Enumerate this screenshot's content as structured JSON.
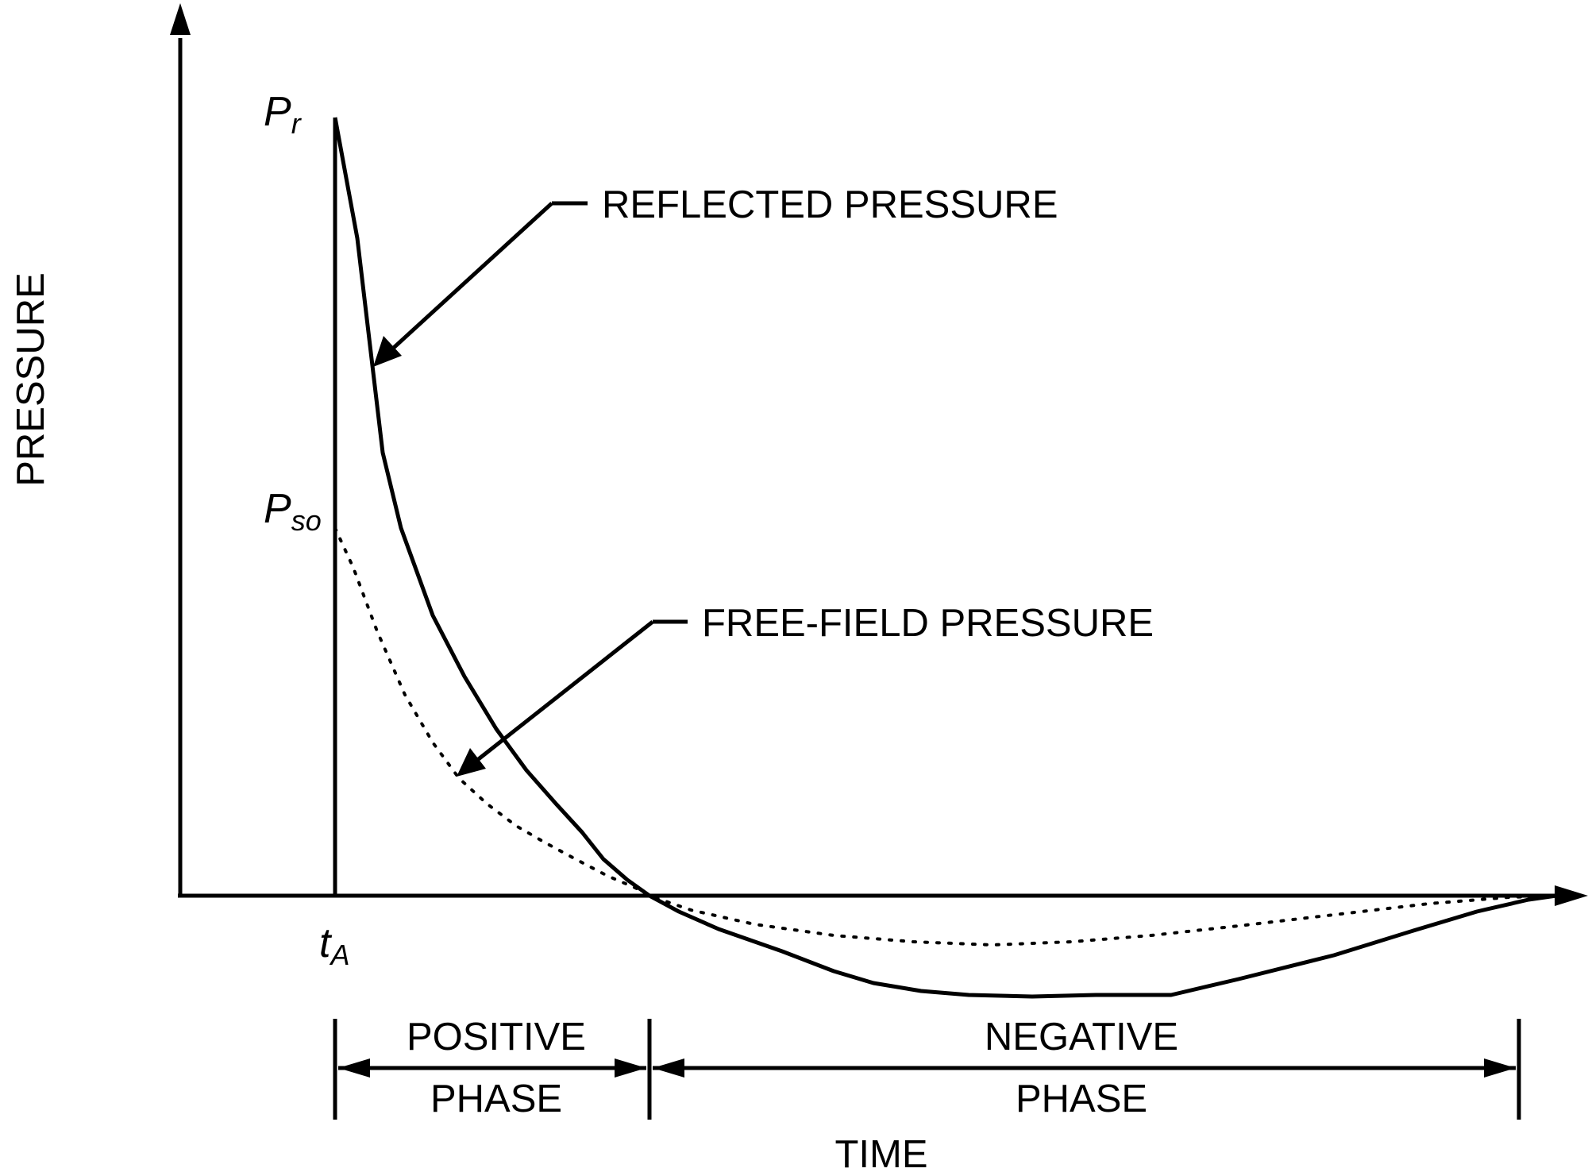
{
  "axes": {
    "y_label": "PRESSURE",
    "x_label": "TIME"
  },
  "symbols": {
    "reflected_peak": {
      "main": "P",
      "sub": "r"
    },
    "free_field_peak": {
      "main": "P",
      "sub": "so"
    },
    "arrival_time": {
      "main": "t",
      "sub": "A"
    }
  },
  "callouts": {
    "reflected": "REFLECTED PRESSURE",
    "free_field": "FREE-FIELD PRESSURE"
  },
  "phases": {
    "positive": {
      "line1": "POSITIVE",
      "line2": "PHASE"
    },
    "negative": {
      "line1": "NEGATIVE",
      "line2": "PHASE"
    }
  },
  "curves": {
    "reflected": {
      "style": "solid",
      "color": "#000000"
    },
    "free_field": {
      "style": "dotted",
      "color": "#000000"
    }
  }
}
